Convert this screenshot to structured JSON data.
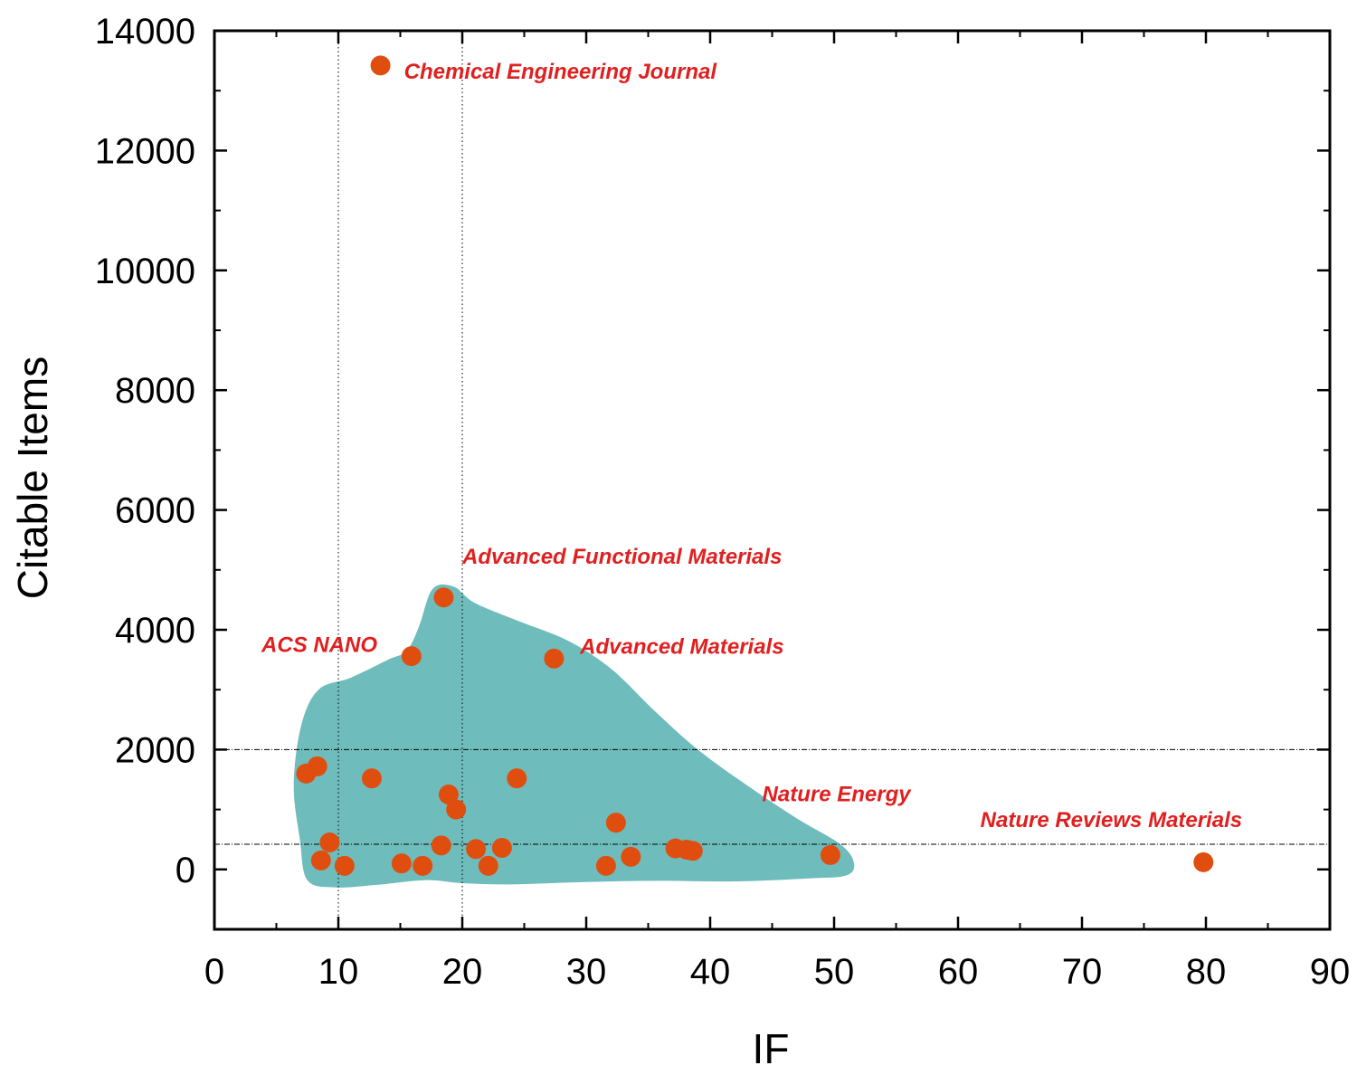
{
  "chart_data": {
    "type": "scatter",
    "title": "",
    "xlabel": "IF",
    "ylabel": "Citable Items",
    "xlim": [
      0,
      90
    ],
    "ylim": [
      -1000,
      14000
    ],
    "x_ticks": [
      "0",
      "10",
      "20",
      "30",
      "40",
      "50",
      "60",
      "70",
      "80",
      "90"
    ],
    "y_ticks": [
      "0",
      "2000",
      "4000",
      "6000",
      "8000",
      "10000",
      "12000",
      "14000"
    ],
    "reference_lines": {
      "vertical_x": [
        10,
        20
      ],
      "horizontal_y": [
        2000,
        420
      ]
    },
    "cluster_region_color": "#6fbcbc",
    "point_color": "#e04e0f",
    "annotation_color": "#e02020",
    "points": [
      {
        "x": 13.4,
        "y": 13420
      },
      {
        "x": 18.5,
        "y": 4540
      },
      {
        "x": 15.9,
        "y": 3560
      },
      {
        "x": 27.4,
        "y": 3520
      },
      {
        "x": 7.4,
        "y": 1600
      },
      {
        "x": 8.3,
        "y": 1720
      },
      {
        "x": 12.7,
        "y": 1520
      },
      {
        "x": 24.4,
        "y": 1520
      },
      {
        "x": 18.9,
        "y": 1250
      },
      {
        "x": 19.5,
        "y": 1000
      },
      {
        "x": 32.4,
        "y": 780
      },
      {
        "x": 9.3,
        "y": 450
      },
      {
        "x": 18.3,
        "y": 400
      },
      {
        "x": 21.1,
        "y": 340
      },
      {
        "x": 23.2,
        "y": 360
      },
      {
        "x": 37.2,
        "y": 350
      },
      {
        "x": 38.1,
        "y": 330
      },
      {
        "x": 38.6,
        "y": 310
      },
      {
        "x": 33.6,
        "y": 210
      },
      {
        "x": 49.7,
        "y": 240
      },
      {
        "x": 8.6,
        "y": 150
      },
      {
        "x": 15.1,
        "y": 100
      },
      {
        "x": 10.5,
        "y": 60
      },
      {
        "x": 16.8,
        "y": 60
      },
      {
        "x": 22.1,
        "y": 60
      },
      {
        "x": 31.6,
        "y": 60
      },
      {
        "x": 79.8,
        "y": 120
      }
    ],
    "annotations": [
      {
        "text": "Chemical Engineering Journal",
        "x": 15.3,
        "y": 13200
      },
      {
        "text": "Advanced Functional Materials",
        "x": 20.0,
        "y": 5100
      },
      {
        "text": "ACS NANO",
        "x": 3.8,
        "y": 3630
      },
      {
        "text": "Advanced Materials",
        "x": 29.5,
        "y": 3600
      },
      {
        "text": "Nature Energy",
        "x": 44.2,
        "y": 1140
      },
      {
        "text": "Nature Reviews Materials",
        "x": 61.8,
        "y": 710
      }
    ],
    "cluster_region": [
      [
        8.4,
        3000
      ],
      [
        11.0,
        3200
      ],
      [
        14.0,
        3500
      ],
      [
        15.5,
        3650
      ],
      [
        16.5,
        4050
      ],
      [
        17.6,
        4680
      ],
      [
        19.3,
        4720
      ],
      [
        21.0,
        4450
      ],
      [
        24.5,
        4150
      ],
      [
        28.5,
        3820
      ],
      [
        32.0,
        3350
      ],
      [
        35.5,
        2650
      ],
      [
        39.0,
        2000
      ],
      [
        43.0,
        1400
      ],
      [
        47.0,
        850
      ],
      [
        50.5,
        420
      ],
      [
        51.6,
        110
      ],
      [
        51.0,
        -100
      ],
      [
        48.0,
        -150
      ],
      [
        42.0,
        -200
      ],
      [
        36.0,
        -190
      ],
      [
        30.0,
        -210
      ],
      [
        24.0,
        -250
      ],
      [
        20.0,
        -230
      ],
      [
        17.0,
        -180
      ],
      [
        13.0,
        -260
      ],
      [
        9.8,
        -300
      ],
      [
        7.5,
        -180
      ],
      [
        6.9,
        500
      ],
      [
        6.4,
        1400
      ],
      [
        7.0,
        2400
      ]
    ]
  }
}
